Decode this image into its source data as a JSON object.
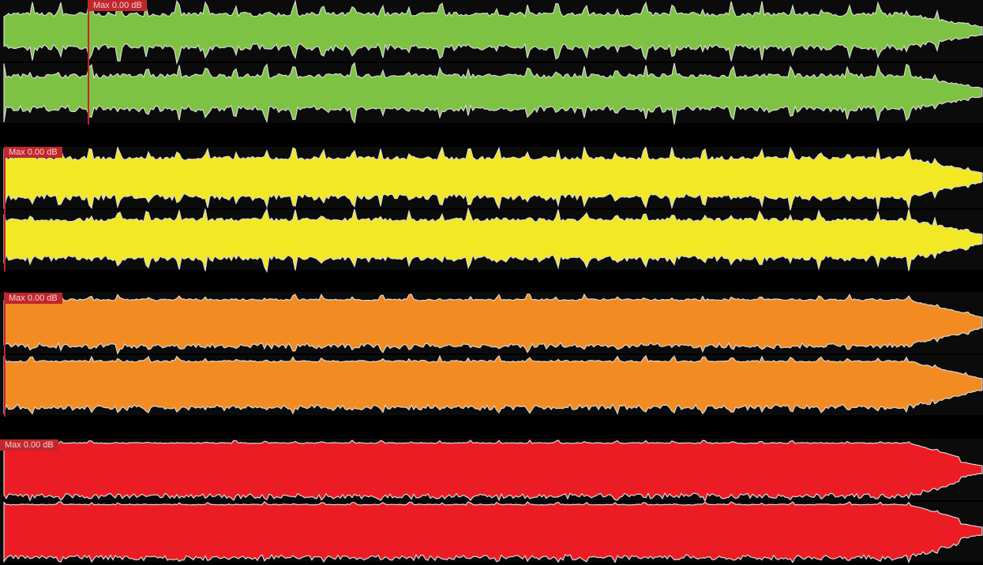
{
  "tracks": [
    {
      "color": "#7dc242",
      "peak_label": "Max 0.00 dB"
    },
    {
      "color": "#f2e824",
      "peak_label": "Max 0.00 dB"
    },
    {
      "color": "#f28c22",
      "peak_label": "Max 0.00 dB"
    },
    {
      "color": "#ec1c24",
      "peak_label": "Max 0.00 dB"
    }
  ],
  "marker_color": "#c0272d"
}
